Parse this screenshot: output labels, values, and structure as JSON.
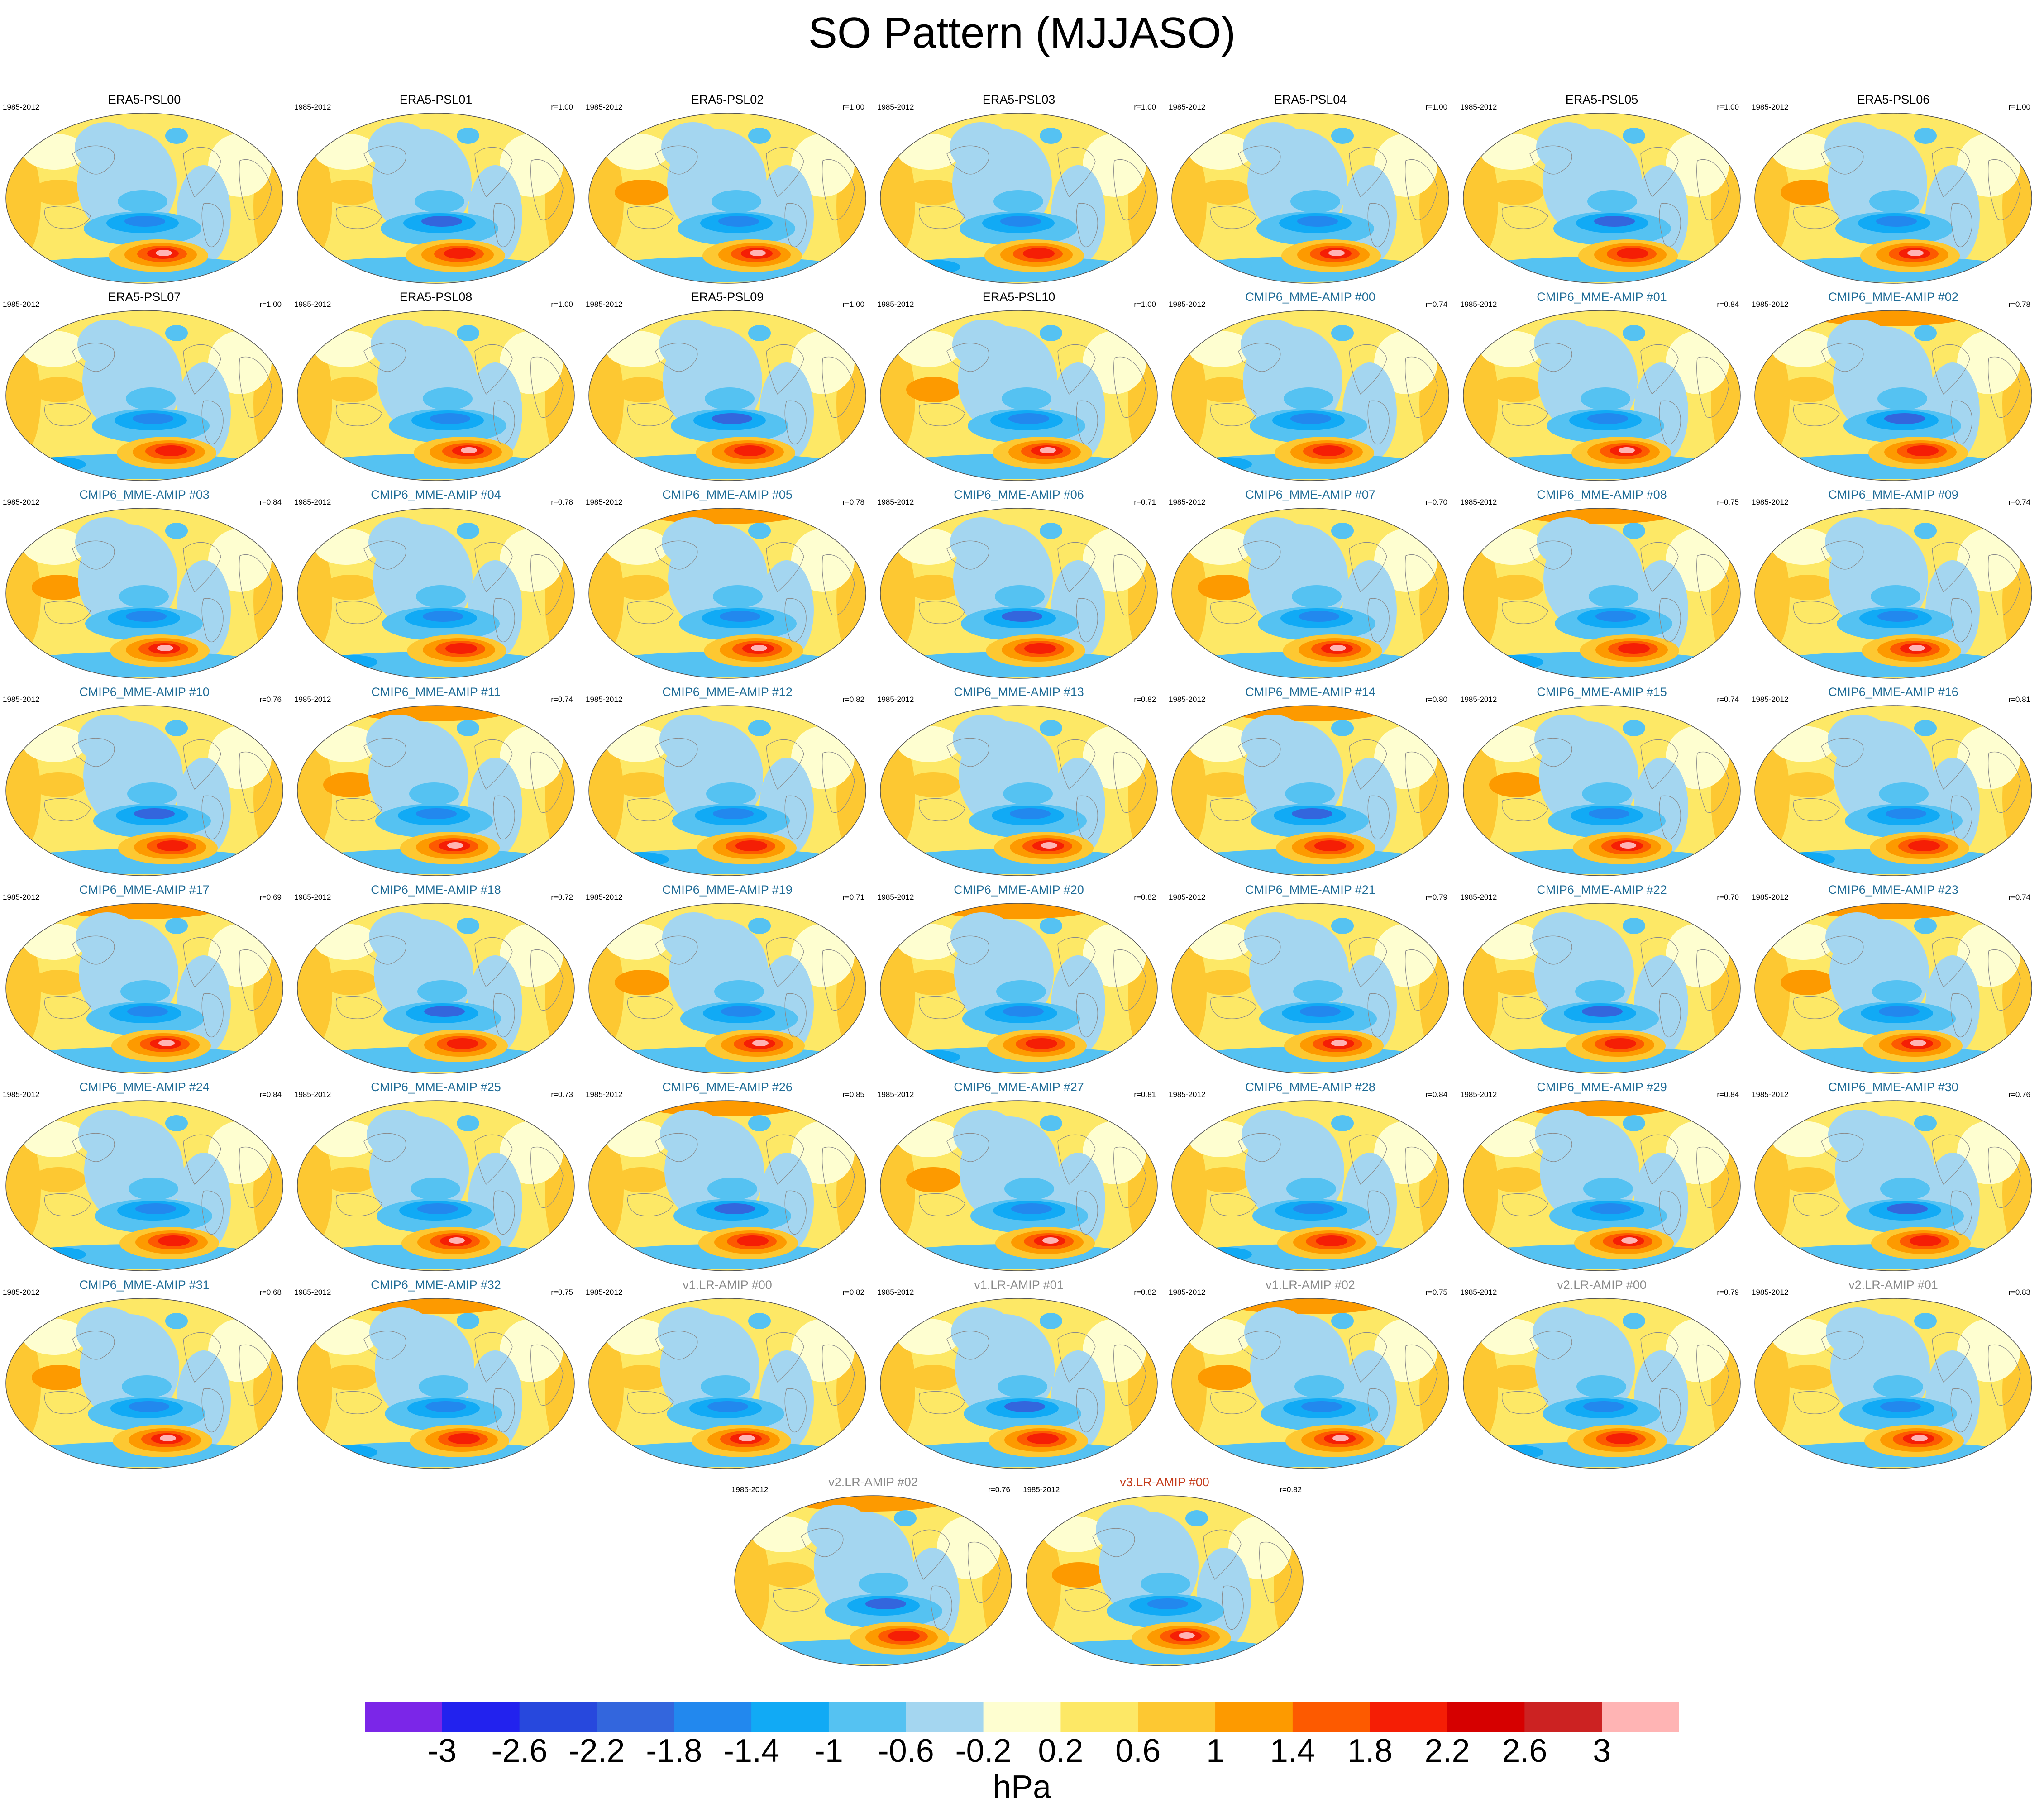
{
  "chart_data": {
    "type": "heatmap",
    "title": "SO Pattern (MJJASO)",
    "projection": "global map panels (Robinson-like, Pacific-centered)",
    "period": "1985-2012",
    "panels": [
      {
        "name": "ERA5-PSL00",
        "corr": "",
        "group": "era5"
      },
      {
        "name": "ERA5-PSL01",
        "corr": "r=1.00",
        "group": "era5"
      },
      {
        "name": "ERA5-PSL02",
        "corr": "r=1.00",
        "group": "era5"
      },
      {
        "name": "ERA5-PSL03",
        "corr": "r=1.00",
        "group": "era5"
      },
      {
        "name": "ERA5-PSL04",
        "corr": "r=1.00",
        "group": "era5"
      },
      {
        "name": "ERA5-PSL05",
        "corr": "r=1.00",
        "group": "era5"
      },
      {
        "name": "ERA5-PSL06",
        "corr": "r=1.00",
        "group": "era5"
      },
      {
        "name": "ERA5-PSL07",
        "corr": "r=1.00",
        "group": "era5"
      },
      {
        "name": "ERA5-PSL08",
        "corr": "r=1.00",
        "group": "era5"
      },
      {
        "name": "ERA5-PSL09",
        "corr": "r=1.00",
        "group": "era5"
      },
      {
        "name": "ERA5-PSL10",
        "corr": "r=1.00",
        "group": "era5"
      },
      {
        "name": "CMIP6_MME-AMIP  #00",
        "corr": "r=0.74",
        "group": "cmip6"
      },
      {
        "name": "CMIP6_MME-AMIP  #01",
        "corr": "r=0.84",
        "group": "cmip6"
      },
      {
        "name": "CMIP6_MME-AMIP  #02",
        "corr": "r=0.78",
        "group": "cmip6"
      },
      {
        "name": "CMIP6_MME-AMIP  #03",
        "corr": "r=0.84",
        "group": "cmip6"
      },
      {
        "name": "CMIP6_MME-AMIP  #04",
        "corr": "r=0.78",
        "group": "cmip6"
      },
      {
        "name": "CMIP6_MME-AMIP  #05",
        "corr": "r=0.78",
        "group": "cmip6"
      },
      {
        "name": "CMIP6_MME-AMIP  #06",
        "corr": "r=0.71",
        "group": "cmip6"
      },
      {
        "name": "CMIP6_MME-AMIP  #07",
        "corr": "r=0.70",
        "group": "cmip6"
      },
      {
        "name": "CMIP6_MME-AMIP  #08",
        "corr": "r=0.75",
        "group": "cmip6"
      },
      {
        "name": "CMIP6_MME-AMIP  #09",
        "corr": "r=0.74",
        "group": "cmip6"
      },
      {
        "name": "CMIP6_MME-AMIP  #10",
        "corr": "r=0.76",
        "group": "cmip6"
      },
      {
        "name": "CMIP6_MME-AMIP  #11",
        "corr": "r=0.74",
        "group": "cmip6"
      },
      {
        "name": "CMIP6_MME-AMIP  #12",
        "corr": "r=0.82",
        "group": "cmip6"
      },
      {
        "name": "CMIP6_MME-AMIP  #13",
        "corr": "r=0.82",
        "group": "cmip6"
      },
      {
        "name": "CMIP6_MME-AMIP  #14",
        "corr": "r=0.80",
        "group": "cmip6"
      },
      {
        "name": "CMIP6_MME-AMIP  #15",
        "corr": "r=0.74",
        "group": "cmip6"
      },
      {
        "name": "CMIP6_MME-AMIP  #16",
        "corr": "r=0.81",
        "group": "cmip6"
      },
      {
        "name": "CMIP6_MME-AMIP  #17",
        "corr": "r=0.69",
        "group": "cmip6"
      },
      {
        "name": "CMIP6_MME-AMIP  #18",
        "corr": "r=0.72",
        "group": "cmip6"
      },
      {
        "name": "CMIP6_MME-AMIP  #19",
        "corr": "r=0.71",
        "group": "cmip6"
      },
      {
        "name": "CMIP6_MME-AMIP  #20",
        "corr": "r=0.82",
        "group": "cmip6"
      },
      {
        "name": "CMIP6_MME-AMIP  #21",
        "corr": "r=0.79",
        "group": "cmip6"
      },
      {
        "name": "CMIP6_MME-AMIP  #22",
        "corr": "r=0.70",
        "group": "cmip6"
      },
      {
        "name": "CMIP6_MME-AMIP  #23",
        "corr": "r=0.74",
        "group": "cmip6"
      },
      {
        "name": "CMIP6_MME-AMIP  #24",
        "corr": "r=0.84",
        "group": "cmip6"
      },
      {
        "name": "CMIP6_MME-AMIP  #25",
        "corr": "r=0.73",
        "group": "cmip6"
      },
      {
        "name": "CMIP6_MME-AMIP  #26",
        "corr": "r=0.85",
        "group": "cmip6"
      },
      {
        "name": "CMIP6_MME-AMIP  #27",
        "corr": "r=0.81",
        "group": "cmip6"
      },
      {
        "name": "CMIP6_MME-AMIP  #28",
        "corr": "r=0.84",
        "group": "cmip6"
      },
      {
        "name": "CMIP6_MME-AMIP  #29",
        "corr": "r=0.84",
        "group": "cmip6"
      },
      {
        "name": "CMIP6_MME-AMIP  #30",
        "corr": "r=0.76",
        "group": "cmip6"
      },
      {
        "name": "CMIP6_MME-AMIP  #31",
        "corr": "r=0.68",
        "group": "cmip6"
      },
      {
        "name": "CMIP6_MME-AMIP  #32",
        "corr": "r=0.75",
        "group": "cmip6"
      },
      {
        "name": "v1.LR-AMIP  #00",
        "corr": "r=0.82",
        "group": "v1"
      },
      {
        "name": "v1.LR-AMIP  #01",
        "corr": "r=0.82",
        "group": "v1"
      },
      {
        "name": "v1.LR-AMIP  #02",
        "corr": "r=0.75",
        "group": "v1"
      },
      {
        "name": "v2.LR-AMIP  #00",
        "corr": "r=0.79",
        "group": "v2"
      },
      {
        "name": "v2.LR-AMIP  #01",
        "corr": "r=0.83",
        "group": "v2"
      },
      {
        "name": "v2.LR-AMIP  #02",
        "corr": "r=0.76",
        "group": "v2"
      },
      {
        "name": "v3.LR-AMIP  #00",
        "corr": "r=0.82",
        "group": "v3"
      }
    ],
    "colorbar": {
      "unit": "hPa",
      "levels": [
        "-3",
        "-2.6",
        "-2.2",
        "-1.8",
        "-1.4",
        "-1",
        "-0.6",
        "-0.2",
        "0.2",
        "0.6",
        "1",
        "1.4",
        "1.8",
        "2.2",
        "2.6",
        "3"
      ],
      "colors": [
        "#7b26e8",
        "#2222ee",
        "#2748dd",
        "#3366dd",
        "#2288ee",
        "#11aaf5",
        "#55c2f2",
        "#a4d6f0",
        "#fefed0",
        "#fde866",
        "#fdc832",
        "#fd9a00",
        "#fd5a00",
        "#f51e05",
        "#d60000",
        "#cc2222",
        "#ffb4b4"
      ]
    },
    "title_colors": {
      "era5": "#000000",
      "cmip6": "#1f6c97",
      "v1": "#8a8a8a",
      "v2": "#8a8a8a",
      "v3": "#c43c1c"
    }
  }
}
